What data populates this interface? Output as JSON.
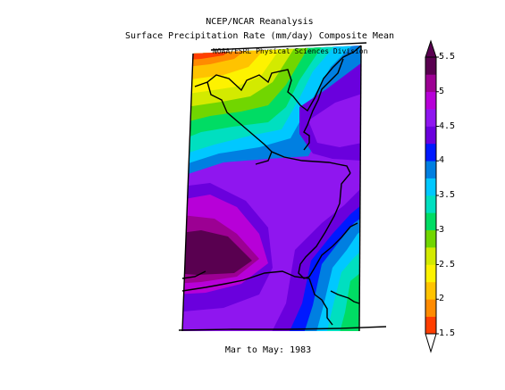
{
  "figure": {
    "title_line1": "NCEP/NCAR Reanalysis",
    "title_line2": "Surface Precipitation Rate (mm/day) Composite Mean",
    "credit": "NOAA/ESRL Physical Sciences Division",
    "subtitle": "Mar to May: 1983"
  },
  "colorbar": {
    "tick_labels": [
      "1.5",
      "2",
      "2.5",
      "3",
      "3.5",
      "4",
      "4.5",
      "5",
      "5.5"
    ],
    "colors": [
      "#ff3e00",
      "#ff8b00",
      "#ffc300",
      "#fdf200",
      "#d3ea00",
      "#71d600",
      "#00dc64",
      "#00dfc0",
      "#00c8ff",
      "#007fe1",
      "#0019ff",
      "#6a00dd",
      "#8f16ef",
      "#b700d8",
      "#9c0093",
      "#590050"
    ],
    "min_extension_color": "#ffffff",
    "max_extension_color": "#590050"
  }
}
